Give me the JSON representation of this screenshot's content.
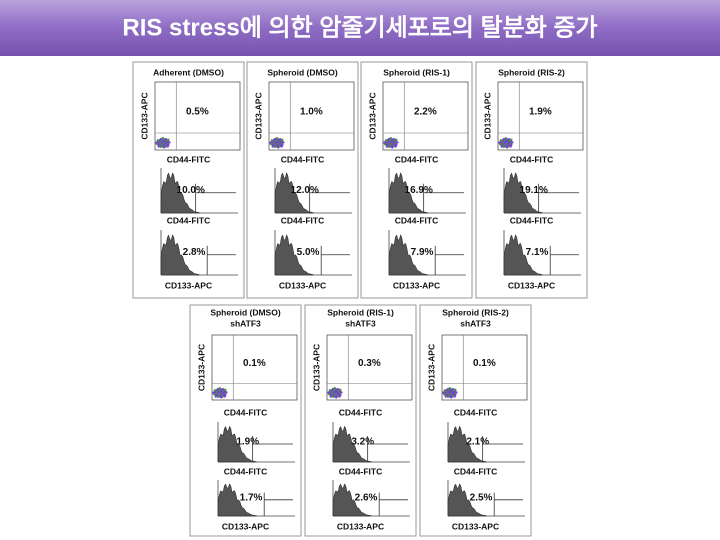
{
  "title": "RIS stress에 의한 암줄기세포로의 탈분화 증가",
  "axis_labels": {
    "scatter_y": "CD133-APC",
    "scatter_x": "CD44-FITC",
    "hist_cd44_x": "CD44-FITC",
    "hist_cd133_x": "CD133-APC"
  },
  "rows": [
    [
      {
        "title": [
          "Adherent (DMSO)"
        ],
        "scatter": "0.5%",
        "hist_cd44": "10.0%",
        "hist_cd133": "2.8%"
      },
      {
        "title": [
          "Spheroid (DMSO)"
        ],
        "scatter": "1.0%",
        "hist_cd44": "12.0%",
        "hist_cd133": "5.0%"
      },
      {
        "title": [
          "Spheroid (RIS-1)"
        ],
        "scatter": "2.2%",
        "hist_cd44": "16.9%",
        "hist_cd133": "7.9%"
      },
      {
        "title": [
          "Spheroid (RIS-2)"
        ],
        "scatter": "1.9%",
        "hist_cd44": "19.1%",
        "hist_cd133": "7.1%"
      }
    ],
    [
      {
        "title": [
          "Spheroid (DMSO)",
          "shATF3"
        ],
        "scatter": "0.1%",
        "hist_cd44": "1.9%",
        "hist_cd133": "1.7%"
      },
      {
        "title": [
          "Spheroid (RIS-1)",
          "shATF3"
        ],
        "scatter": "0.3%",
        "hist_cd44": "3.2%",
        "hist_cd133": "2.6%"
      },
      {
        "title": [
          "Spheroid (RIS-2)",
          "shATF3"
        ],
        "scatter": "0.1%",
        "hist_cd44": "2.1%",
        "hist_cd133": "2.5%"
      }
    ]
  ]
}
